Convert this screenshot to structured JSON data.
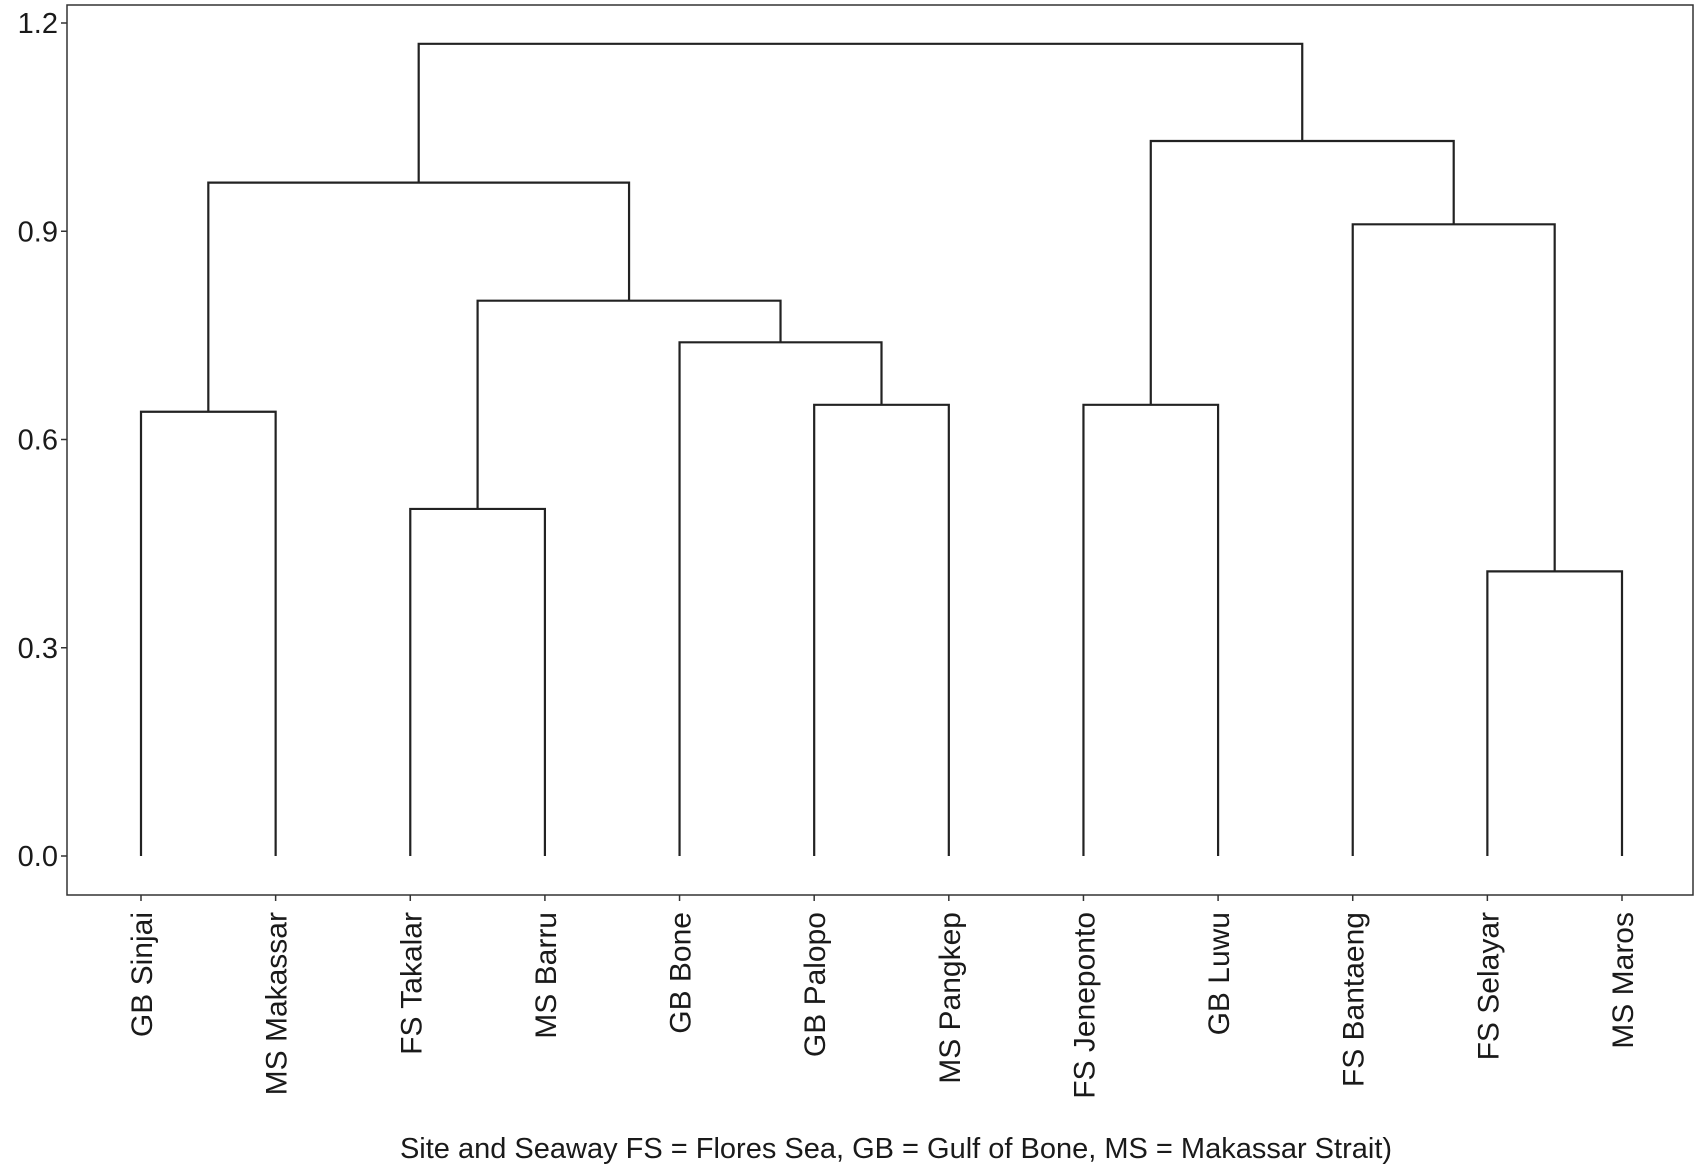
{
  "chart_data": {
    "type": "dendrogram",
    "title": "",
    "xlabel": "Site and Seaway FS = Flores Sea, GB = Gulf of Bone, MS = Makassar Strait)",
    "ylabel": "",
    "ylim": [
      0,
      1.2
    ],
    "y_ticks": [
      0.0,
      0.3,
      0.6,
      0.9,
      1.2
    ],
    "y_tick_labels": [
      "0.0",
      "0.3",
      "0.6",
      "0.9",
      "1.2"
    ],
    "grid": false,
    "leaves": [
      "GB Sinjai",
      "MS Makassar",
      "FS Takalar",
      "MS Barru",
      "GB Bone",
      "GB Palopo",
      "MS Pangkep",
      "FS Jeneponto",
      "GB Luwu",
      "FS Bantaeng",
      "FS Selayar",
      "MS Maros"
    ],
    "merges": [
      {
        "left": "GB Sinjai",
        "right": "MS Makassar",
        "height": 0.64
      },
      {
        "left": "FS Takalar",
        "right": "MS Barru",
        "height": 0.5
      },
      {
        "left": "GB Palopo",
        "right": "MS Pangkep",
        "height": 0.65
      },
      {
        "left": "GB Bone",
        "right": "(GB Palopo, MS Pangkep)",
        "height": 0.74
      },
      {
        "left": "(FS Takalar, MS Barru)",
        "right": "(GB Bone, GB Palopo, MS Pangkep)",
        "height": 0.8
      },
      {
        "left": "(GB Sinjai, MS Makassar)",
        "right": "(FS Takalar ... MS Pangkep)",
        "height": 0.97
      },
      {
        "left": "FS Jeneponto",
        "right": "GB Luwu",
        "height": 0.65
      },
      {
        "left": "FS Selayar",
        "right": "MS Maros",
        "height": 0.41
      },
      {
        "left": "FS Bantaeng",
        "right": "(FS Selayar, MS Maros)",
        "height": 0.91
      },
      {
        "left": "(FS Jeneponto, GB Luwu)",
        "right": "(FS Bantaeng, FS Selayar, MS Maros)",
        "height": 1.03
      },
      {
        "left": "(GB Sinjai ... MS Pangkep)",
        "right": "(FS Jeneponto ... MS Maros)",
        "height": 1.17
      }
    ]
  }
}
